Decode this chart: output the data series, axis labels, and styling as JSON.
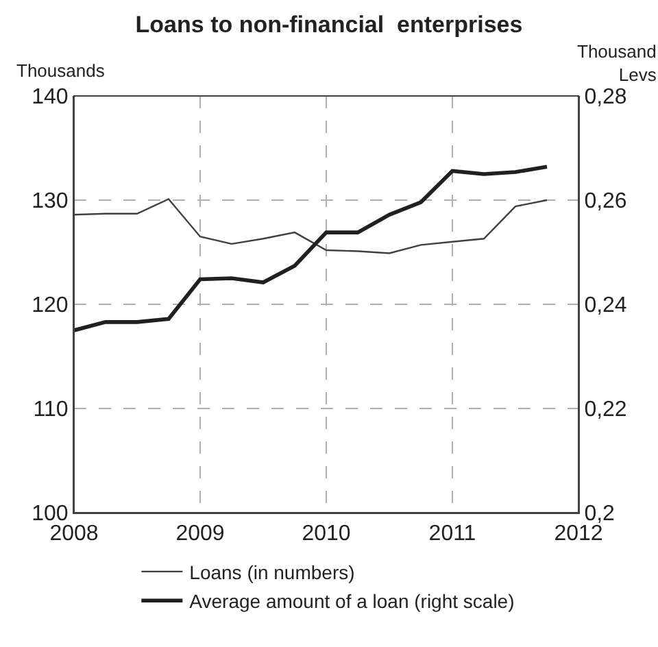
{
  "chart_data": {
    "type": "line",
    "title": "Loans to non-financial  enterprises",
    "ylabel": "Thousands",
    "y2label": "Thousand Levs",
    "x": [
      2008.0,
      2008.25,
      2008.5,
      2008.75,
      2009.0,
      2009.25,
      2009.5,
      2009.75,
      2010.0,
      2010.25,
      2010.5,
      2010.75,
      2011.0,
      2011.25,
      2011.5,
      2011.75
    ],
    "series": [
      {
        "name": "Loans (in numbers)",
        "color": "#404040",
        "values": [
          128.6,
          128.7,
          128.7,
          130.1,
          126.5,
          125.8,
          126.3,
          126.9,
          125.2,
          125.1,
          124.9,
          125.7,
          126.0,
          126.3,
          129.4,
          130.0
        ]
      },
      {
        "name": "Average amount of a loan (right scale)",
        "color": "#202020",
        "axis": "y2",
        "values": [
          0.235,
          0.2366,
          0.2366,
          0.2372,
          0.2448,
          0.245,
          0.2442,
          0.2474,
          0.2538,
          0.2538,
          0.2572,
          0.2596,
          0.2656,
          0.265,
          0.2654,
          0.2664
        ]
      }
    ],
    "xlim": [
      2008,
      2012
    ],
    "xticks": [
      2008,
      2009,
      2010,
      2011,
      2012
    ],
    "ylim": [
      100,
      140
    ],
    "yticks": [
      100,
      110,
      120,
      130,
      140
    ],
    "y2lim": [
      0.2,
      0.28
    ],
    "y2ticks": [
      {
        "value": 0.2,
        "label": "0,2"
      },
      {
        "value": 0.22,
        "label": "0,22"
      },
      {
        "value": 0.24,
        "label": "0,24"
      },
      {
        "value": 0.26,
        "label": "0,26"
      },
      {
        "value": 0.28,
        "label": "0,28"
      }
    ],
    "grid": true,
    "legend": "bottom",
    "marker": "none",
    "line_style": "solid"
  }
}
